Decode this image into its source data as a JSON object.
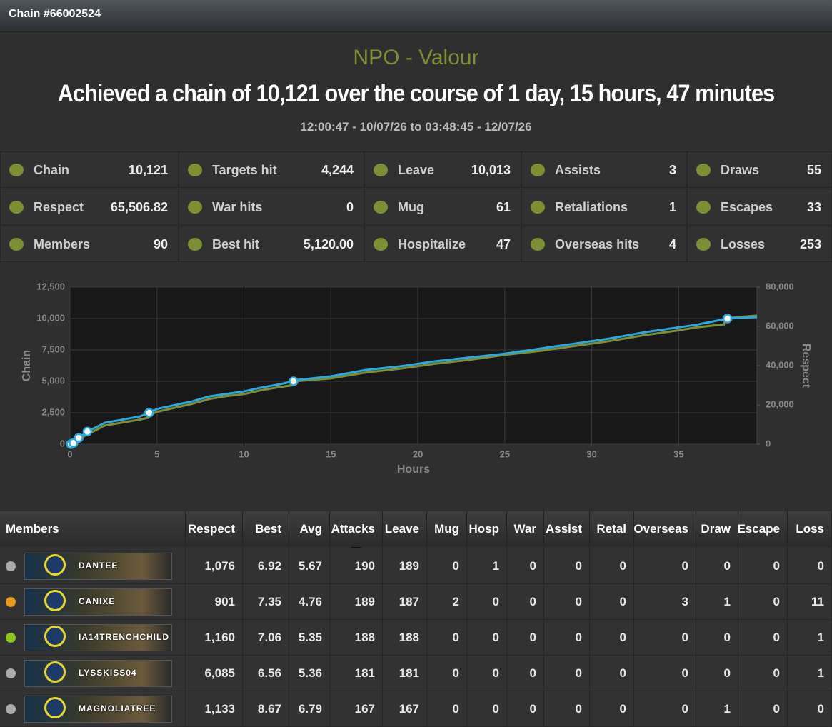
{
  "header": {
    "title": "Chain #66002524"
  },
  "summary": {
    "faction": "NPO - Valour",
    "headline": "Achieved a chain of 10,121 over the course of 1 day, 15 hours, 47 minutes",
    "period": "12:00:47 - 10/07/26 to 03:48:45 - 12/07/26"
  },
  "stats": [
    [
      {
        "label": "Chain",
        "value": "10,121"
      },
      {
        "label": "Targets hit",
        "value": "4,244"
      },
      {
        "label": "Leave",
        "value": "10,013"
      },
      {
        "label": "Assists",
        "value": "3"
      },
      {
        "label": "Draws",
        "value": "55"
      }
    ],
    [
      {
        "label": "Respect",
        "value": "65,506.82"
      },
      {
        "label": "War hits",
        "value": "0"
      },
      {
        "label": "Mug",
        "value": "61"
      },
      {
        "label": "Retaliations",
        "value": "1"
      },
      {
        "label": "Escapes",
        "value": "33"
      }
    ],
    [
      {
        "label": "Members",
        "value": "90"
      },
      {
        "label": "Best hit",
        "value": "5,120.00"
      },
      {
        "label": "Hospitalize",
        "value": "47"
      },
      {
        "label": "Overseas hits",
        "value": "4"
      },
      {
        "label": "Losses",
        "value": "253"
      }
    ]
  ],
  "chart_data": {
    "type": "line",
    "x_label": "Hours",
    "y_label": "Chain",
    "y2_label": "Respect",
    "xlim": [
      0,
      39.5
    ],
    "xticks": [
      0,
      5,
      10,
      15,
      20,
      25,
      30,
      35
    ],
    "ylim": [
      0,
      12500
    ],
    "yticks": [
      0,
      {
        "value": 2500,
        "label": "2,500"
      },
      {
        "value": 5000,
        "label": "5,000"
      },
      {
        "value": 7500,
        "label": "7,500"
      },
      {
        "value": 10000,
        "label": "10,000"
      },
      {
        "value": 12500,
        "label": "12,500"
      }
    ],
    "y2lim": [
      0,
      80000
    ],
    "y2ticks": [
      0,
      {
        "value": 20000,
        "label": "20,000"
      },
      {
        "value": 40000,
        "label": "40,000"
      },
      {
        "value": 60000,
        "label": "60,000"
      },
      {
        "value": 80000,
        "label": "80,000"
      }
    ],
    "grid": true,
    "series": [
      {
        "name": "Respect",
        "color": "#7d8f34",
        "axis": "y2",
        "x": [
          0,
          0.5,
          1,
          2,
          3,
          4,
          4.5,
          4.6,
          5,
          6,
          7,
          8,
          9,
          10,
          11,
          12,
          12.8,
          12.9,
          15,
          17,
          19,
          21,
          23,
          25,
          27,
          29,
          31,
          33,
          35,
          36,
          37.6,
          37.7,
          38.5,
          39.5
        ],
        "values": [
          0,
          2500,
          5000,
          9500,
          11000,
          12500,
          13500,
          15000,
          16500,
          18500,
          20500,
          23000,
          24500,
          25500,
          27500,
          29000,
          30000,
          32000,
          33500,
          36500,
          38500,
          41000,
          43000,
          45500,
          47500,
          50000,
          52500,
          55500,
          58000,
          59500,
          61000,
          64000,
          64800,
          65506.82
        ]
      },
      {
        "name": "Chain",
        "color": "#2aa9e0",
        "x": [
          0,
          0.2,
          0.5,
          1,
          2,
          3,
          4,
          4.55,
          5,
          6,
          7,
          8,
          9,
          10,
          11,
          12,
          12.85,
          13,
          15,
          17,
          19,
          21,
          23,
          25,
          27,
          29,
          31,
          33,
          35,
          36,
          37.8,
          38.5,
          39.5
        ],
        "values": [
          0,
          100,
          500,
          1000,
          1700,
          1950,
          2200,
          2500,
          2800,
          3100,
          3400,
          3800,
          4000,
          4200,
          4500,
          4750,
          5000,
          5100,
          5400,
          5900,
          6200,
          6600,
          6900,
          7200,
          7600,
          8000,
          8400,
          8900,
          9300,
          9500,
          10000,
          10050,
          10121
        ]
      }
    ],
    "milestones": {
      "x": [
        0.05,
        0.2,
        0.5,
        1,
        4.55,
        12.85,
        37.8
      ],
      "values": [
        10,
        100,
        500,
        1000,
        2500,
        5000,
        10000
      ]
    }
  },
  "table": {
    "columns": [
      "Members",
      "Respect",
      "Best",
      "Avg",
      "Attacks",
      "Leave",
      "Mug",
      "Hosp",
      "War",
      "Assist",
      "Retal",
      "Overseas",
      "Draw",
      "Escape",
      "Loss"
    ],
    "rows": [
      [
        "DANTEE",
        "1,076",
        "6.92",
        "5.67",
        "190",
        "189",
        "0",
        "1",
        "0",
        "0",
        "0",
        "0",
        "0",
        "0",
        "0"
      ],
      [
        "CANIXE",
        "901",
        "7.35",
        "4.76",
        "189",
        "187",
        "2",
        "0",
        "0",
        "0",
        "0",
        "3",
        "1",
        "0",
        "11"
      ],
      [
        "IA14TRENCHCHILD",
        "1,160",
        "7.06",
        "5.35",
        "188",
        "188",
        "0",
        "0",
        "0",
        "0",
        "0",
        "0",
        "0",
        "0",
        "1"
      ],
      [
        "LYSSKISS04",
        "6,085",
        "6.56",
        "5.36",
        "181",
        "181",
        "0",
        "0",
        "0",
        "0",
        "0",
        "0",
        "0",
        "0",
        "1"
      ],
      [
        "MAGNOLIATREE",
        "1,133",
        "8.67",
        "6.79",
        "167",
        "167",
        "0",
        "0",
        "0",
        "0",
        "0",
        "0",
        "1",
        "0",
        "0"
      ]
    ]
  }
}
